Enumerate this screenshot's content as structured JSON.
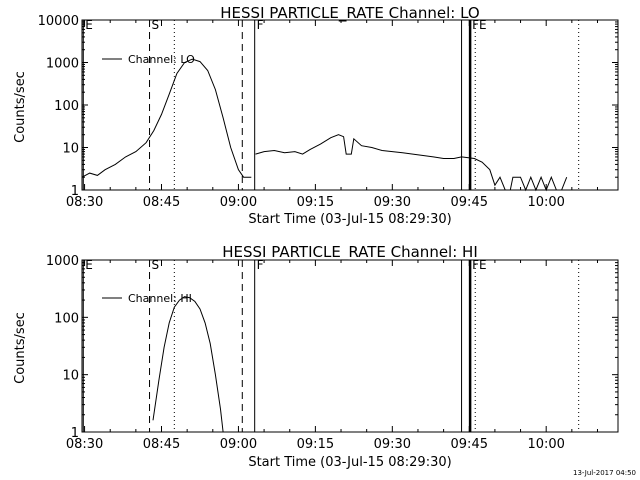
{
  "footer": {
    "timestamp": "13-Jul-2017 04:50"
  },
  "chart_data": [
    {
      "type": "line",
      "title": "HESSI PARTICLE_RATE Channel: LO",
      "xlabel": "Start Time (03-Jul-15 08:29:30)",
      "ylabel": "Counts/sec",
      "xlim": [
        "08:29:30",
        "10:14:00"
      ],
      "ylim": [
        1,
        10000
      ],
      "yscale": "log",
      "x_ticks": [
        "08:30",
        "08:45",
        "09:00",
        "09:15",
        "09:30",
        "09:45",
        "10:00"
      ],
      "y_ticks": [
        {
          "value": 1,
          "label": "1"
        },
        {
          "value": 10,
          "label": "10"
        },
        {
          "value": 100,
          "label": "100"
        },
        {
          "value": 1000,
          "label": "1000"
        },
        {
          "value": 10000,
          "label": "10000"
        }
      ],
      "legend": {
        "position": "top-left",
        "entries": [
          "Channel: LO"
        ]
      },
      "markers": [
        {
          "label": "E",
          "time": "08:29:45",
          "style": "solid"
        },
        {
          "label": "S",
          "time": "08:42:40",
          "style": "dashed"
        },
        {
          "label": "",
          "time": "08:47:30",
          "style": "dotted"
        },
        {
          "label": "",
          "time": "09:00:45",
          "style": "dashed"
        },
        {
          "label": "F",
          "time": "09:03:10",
          "style": "solid"
        },
        {
          "label": "",
          "time": "09:43:30",
          "style": "solid"
        },
        {
          "label": "FE",
          "time": "09:45:10",
          "style": "thick"
        },
        {
          "label": "",
          "time": "09:46:10",
          "style": "dotted"
        },
        {
          "label": "",
          "time": "10:06:20",
          "style": "dotted"
        }
      ],
      "series": [
        {
          "name": "Channel: LO",
          "segments": [
            [
              [
                "08:29:30",
                2
              ],
              [
                "08:31:00",
                2.5
              ],
              [
                "08:32:30",
                2.2
              ],
              [
                "08:34:00",
                3
              ],
              [
                "08:36:00",
                4
              ],
              [
                "08:38:00",
                6
              ],
              [
                "08:40:00",
                8
              ],
              [
                "08:42:00",
                13
              ],
              [
                "08:43:30",
                25
              ],
              [
                "08:45:00",
                60
              ],
              [
                "08:46:30",
                180
              ],
              [
                "08:48:00",
                550
              ],
              [
                "08:49:30",
                1000
              ],
              [
                "08:51:00",
                1200
              ],
              [
                "08:52:30",
                1050
              ],
              [
                "08:54:00",
                650
              ],
              [
                "08:55:30",
                230
              ],
              [
                "08:57:00",
                50
              ],
              [
                "08:58:30",
                10
              ],
              [
                "09:00:00",
                3
              ],
              [
                "09:01:00",
                2
              ],
              [
                "09:02:30",
                2
              ]
            ],
            [
              [
                "09:03:20",
                7
              ],
              [
                "09:05:00",
                8
              ],
              [
                "09:07:00",
                8.5
              ],
              [
                "09:09:00",
                7.5
              ],
              [
                "09:11:00",
                8
              ],
              [
                "09:12:30",
                7
              ],
              [
                "09:14:00",
                9
              ],
              [
                "09:16:00",
                12
              ],
              [
                "09:18:00",
                17
              ],
              [
                "09:19:30",
                20
              ],
              [
                "09:20:30",
                18
              ],
              [
                "09:21:00",
                7
              ],
              [
                "09:22:00",
                7
              ],
              [
                "09:22:30",
                16
              ],
              [
                "09:24:00",
                11
              ],
              [
                "09:26:00",
                10
              ],
              [
                "09:28:00",
                8.5
              ],
              [
                "09:30:00",
                8
              ],
              [
                "09:32:00",
                7.5
              ],
              [
                "09:34:00",
                7
              ],
              [
                "09:36:00",
                6.5
              ],
              [
                "09:38:00",
                6
              ],
              [
                "09:40:00",
                5.5
              ],
              [
                "09:42:00",
                5.5
              ],
              [
                "09:43:30",
                6
              ],
              [
                "09:46:00",
                5.5
              ],
              [
                "09:47:30",
                4.5
              ],
              [
                "09:49:00",
                3
              ],
              [
                "09:50:00",
                1.3
              ],
              [
                "09:51:00",
                2
              ],
              [
                "09:52:00",
                1
              ],
              [
                "09:53:00",
                1
              ],
              [
                "09:53:30",
                2
              ],
              [
                "09:55:00",
                2
              ],
              [
                "09:56:00",
                1
              ],
              [
                "09:57:00",
                2
              ],
              [
                "09:58:00",
                1
              ],
              [
                "09:59:00",
                2
              ],
              [
                "10:00:00",
                1
              ],
              [
                "10:01:00",
                2
              ],
              [
                "10:02:00",
                1
              ],
              [
                "10:03:00",
                1
              ],
              [
                "10:04:00",
                2
              ]
            ]
          ]
        }
      ]
    },
    {
      "type": "line",
      "title": "HESSI PARTICLE_RATE Channel: HI",
      "xlabel": "Start Time (03-Jul-15 08:29:30)",
      "ylabel": "Counts/sec",
      "xlim": [
        "08:29:30",
        "10:14:00"
      ],
      "ylim": [
        1,
        1000
      ],
      "yscale": "log",
      "x_ticks": [
        "08:30",
        "08:45",
        "09:00",
        "09:15",
        "09:30",
        "09:45",
        "10:00"
      ],
      "y_ticks": [
        {
          "value": 1,
          "label": "1"
        },
        {
          "value": 10,
          "label": "10"
        },
        {
          "value": 100,
          "label": "100"
        },
        {
          "value": 1000,
          "label": "1000"
        }
      ],
      "legend": {
        "position": "top-left",
        "entries": [
          "Channel: HI"
        ]
      },
      "markers": [
        {
          "label": "E",
          "time": "08:29:45",
          "style": "solid"
        },
        {
          "label": "S",
          "time": "08:42:40",
          "style": "dashed"
        },
        {
          "label": "",
          "time": "08:47:30",
          "style": "dotted"
        },
        {
          "label": "",
          "time": "09:00:45",
          "style": "dashed"
        },
        {
          "label": "F",
          "time": "09:03:10",
          "style": "solid"
        },
        {
          "label": "",
          "time": "09:43:30",
          "style": "solid"
        },
        {
          "label": "FE",
          "time": "09:45:10",
          "style": "thick"
        },
        {
          "label": "",
          "time": "09:46:10",
          "style": "dotted"
        },
        {
          "label": "",
          "time": "10:06:20",
          "style": "dotted"
        }
      ],
      "series": [
        {
          "name": "Channel: HI",
          "segments": [
            [
              [
                "08:43:20",
                1.6
              ],
              [
                "08:44:30",
                8
              ],
              [
                "08:45:30",
                30
              ],
              [
                "08:46:30",
                80
              ],
              [
                "08:47:30",
                150
              ],
              [
                "08:48:30",
                200
              ],
              [
                "08:49:30",
                230
              ],
              [
                "08:50:30",
                220
              ],
              [
                "08:51:30",
                190
              ],
              [
                "08:52:30",
                140
              ],
              [
                "08:53:30",
                80
              ],
              [
                "08:54:30",
                35
              ],
              [
                "08:55:30",
                10
              ],
              [
                "08:56:30",
                2.5
              ],
              [
                "08:57:00",
                1
              ]
            ]
          ]
        }
      ]
    }
  ]
}
